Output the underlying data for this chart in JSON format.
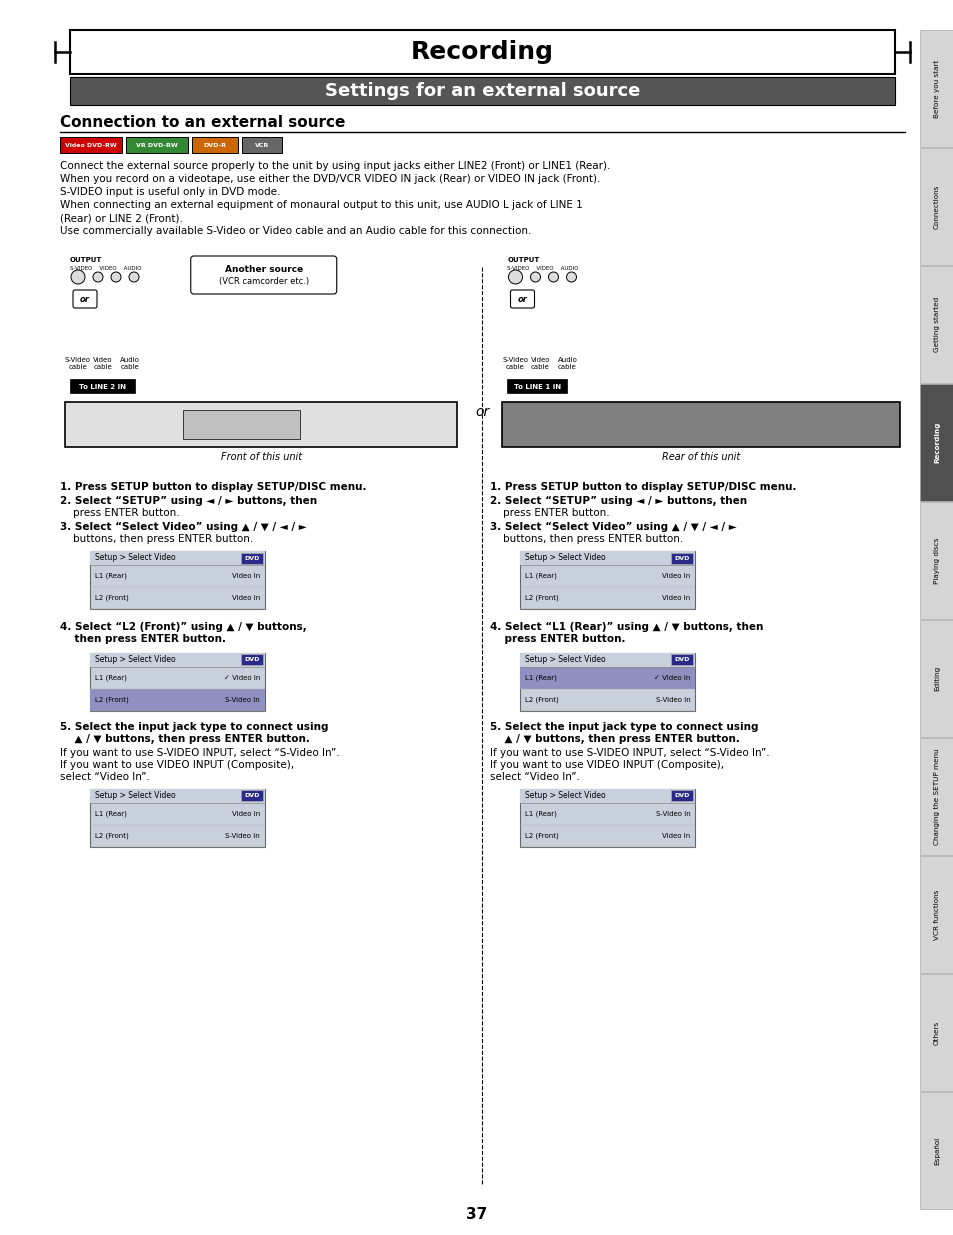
{
  "title": "Recording",
  "subtitle": "Settings for an external source",
  "section_title": "Connection to an external source",
  "bg_color": "#ffffff",
  "subtitle_bg": "#555555",
  "tab_labels": [
    "Before you start",
    "Connections",
    "Getting started",
    "Recording",
    "Playing discs",
    "Editing",
    "Changing the SETUP menu",
    "VCR functions",
    "Others",
    "Español"
  ],
  "tab_highlight": "Recording",
  "page_number": "37",
  "body_lines": [
    "Connect the external source properly to the unit by using input jacks either LINE2 (Front) or LINE1 (Rear).",
    "When you record on a videotape, use either the DVD/VCR VIDEO IN jack (Rear) or VIDEO IN jack (Front).",
    "S-VIDEO input is useful only in DVD mode.",
    "When connecting an external equipment of monaural output to this unit, use AUDIO L jack of LINE 1",
    "(Rear) or LINE 2 (Front).",
    "Use commercially available S-Video or Video cable and an Audio cable for this connection."
  ],
  "step1": "1. Press SETUP button to display SETUP/DISC menu.",
  "step2": "2. Select “SETUP” using ◄ / ► buttons, then\n    press ENTER button.",
  "step3": "3. Select “Select Video” using ▲ / ▼ / ◄ / ►\n    buttons, then press ENTER button.",
  "step3_screen_rows": [
    [
      "L1 (Rear)",
      "Video In",
      false
    ],
    [
      "L2 (Front)",
      "Video In",
      false
    ]
  ],
  "step4_left": "4. Select “L2 (Front)” using ▲ / ▼ buttons,\n    then press ENTER button.",
  "step4_left_screen": [
    [
      "L1 (Rear)",
      "✓ Video In",
      false
    ],
    [
      "L2 (Front)",
      "S-Video In",
      true
    ]
  ],
  "step4_right": "4. Select “L1 (Rear)” using ▲ / ▼ buttons, then\n    press ENTER button.",
  "step4_right_screen": [
    [
      "L1 (Rear)",
      "✓ Video In",
      true
    ],
    [
      "L2 (Front)",
      "S-Video In",
      false
    ]
  ],
  "step5_header": "5. Select the input jack type to connect using\n    ▲ / ▼ buttons, then press ENTER button.",
  "step5_body": [
    "If you want to use S-VIDEO INPUT, select “S-Video In”.",
    "If you want to use VIDEO INPUT (Composite),",
    "select “Video In”."
  ],
  "step5_left_screen": [
    [
      "L1 (Rear)",
      "Video In",
      false
    ],
    [
      "L2 (Front)",
      "S-Video In",
      false
    ]
  ],
  "step5_right_screen": [
    [
      "L1 (Rear)",
      "S-Video In",
      false
    ],
    [
      "L2 (Front)",
      "Video In",
      false
    ]
  ],
  "front_label": "Front of this unit",
  "rear_label": "Rear of this unit",
  "to_line2": "To LINE 2 IN",
  "to_line1": "To LINE 1 IN",
  "or_text": "or",
  "another_source": "Another source\n(VCR camcorder etc.)"
}
